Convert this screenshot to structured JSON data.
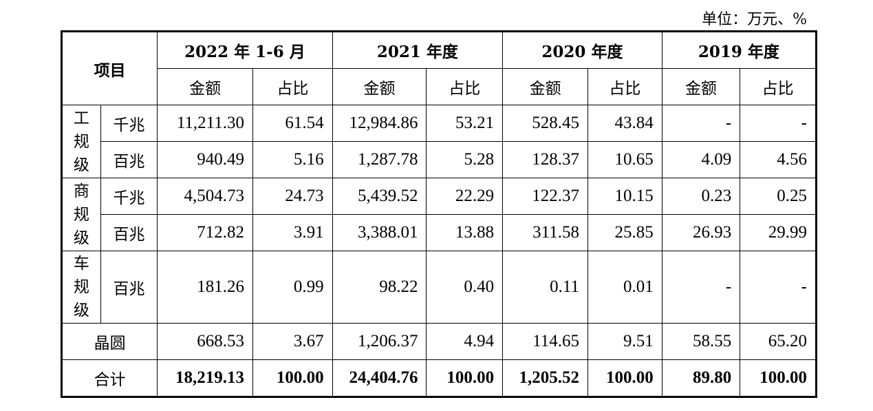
{
  "unit_label": "单位：万元、%",
  "header": {
    "item": "项目",
    "periods": [
      "2022 年 1-6 月",
      "2021 年度",
      "2020 年度",
      "2019 年度"
    ],
    "amount": "金额",
    "ratio": "占比"
  },
  "rows": [
    {
      "group": "工规级",
      "sub": "千兆",
      "values": [
        "11,211.30",
        "61.54",
        "12,984.86",
        "53.21",
        "528.45",
        "43.84",
        "-",
        "-"
      ]
    },
    {
      "group": "",
      "sub": "百兆",
      "values": [
        "940.49",
        "5.16",
        "1,287.78",
        "5.28",
        "128.37",
        "10.65",
        "4.09",
        "4.56"
      ]
    },
    {
      "group": "商规级",
      "sub": "千兆",
      "values": [
        "4,504.73",
        "24.73",
        "5,439.52",
        "22.29",
        "122.37",
        "10.15",
        "0.23",
        "0.25"
      ]
    },
    {
      "group": "",
      "sub": "百兆",
      "values": [
        "712.82",
        "3.91",
        "3,388.01",
        "13.88",
        "311.58",
        "25.85",
        "26.93",
        "29.99"
      ]
    },
    {
      "group": "车规级",
      "sub": "百兆",
      "values": [
        "181.26",
        "0.99",
        "98.22",
        "0.40",
        "0.11",
        "0.01",
        "-",
        "-"
      ]
    }
  ],
  "wafer": {
    "label": "晶圆",
    "values": [
      "668.53",
      "3.67",
      "1,206.37",
      "4.94",
      "114.65",
      "9.51",
      "58.55",
      "65.20"
    ]
  },
  "total": {
    "label": "合计",
    "values": [
      "18,219.13",
      "100.00",
      "24,404.76",
      "100.00",
      "1,205.52",
      "100.00",
      "89.80",
      "100.00"
    ]
  }
}
